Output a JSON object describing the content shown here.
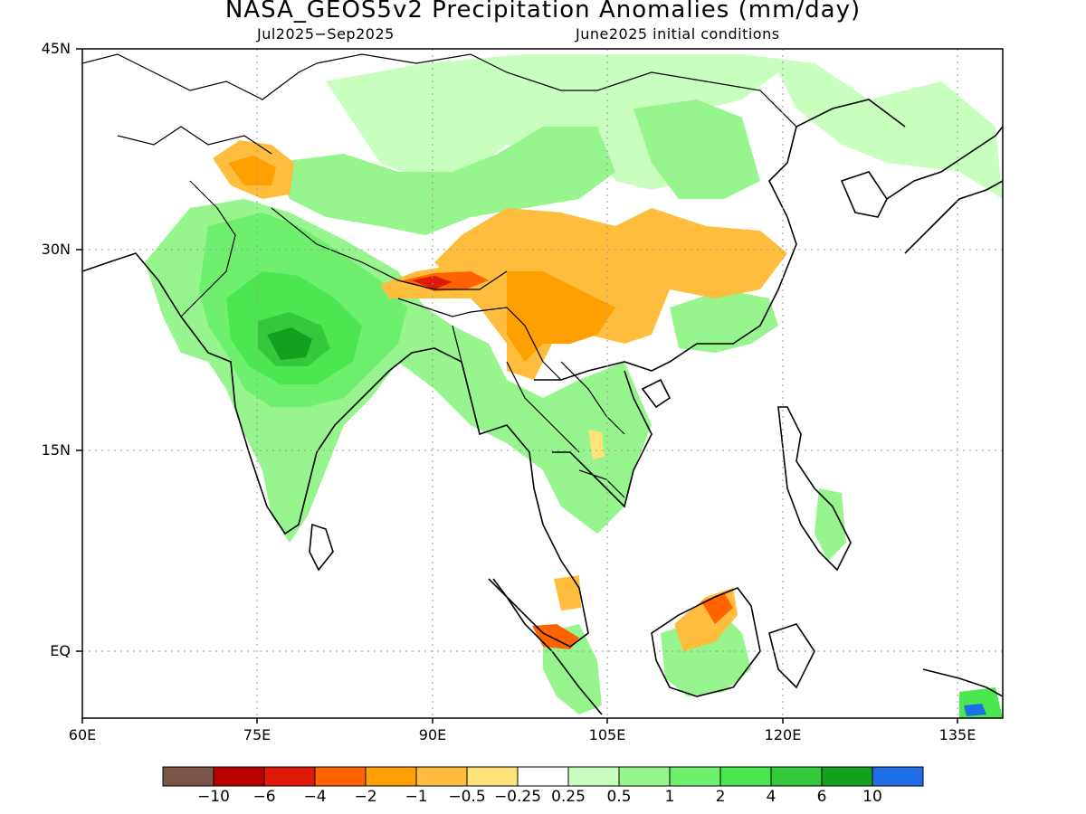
{
  "title": "NASA_GEOS5v2 Precipitation Anomalies (mm/day)",
  "period": "Jul2025−Sep2025",
  "init": "June2025 initial conditions",
  "lat_labels": [
    "45N",
    "30N",
    "15N",
    "EQ"
  ],
  "lon_labels": [
    "60E",
    "75E",
    "90E",
    "105E",
    "120E",
    "135E"
  ],
  "legend": {
    "colors": [
      "#7a5548",
      "#b80000",
      "#e01a0a",
      "#ff6400",
      "#ff9f00",
      "#ffbd3d",
      "#ffe278",
      "#ffffff",
      "#c8ffbe",
      "#96f58c",
      "#6ef06e",
      "#4ce650",
      "#34c83c",
      "#12a01e",
      "#1e6ee6"
    ],
    "labels": [
      "−10",
      "−6",
      "−4",
      "−2",
      "−1",
      "−0.5",
      "−0.25",
      "0.25",
      "0.5",
      "1",
      "2",
      "4",
      "6",
      "10"
    ]
  }
}
